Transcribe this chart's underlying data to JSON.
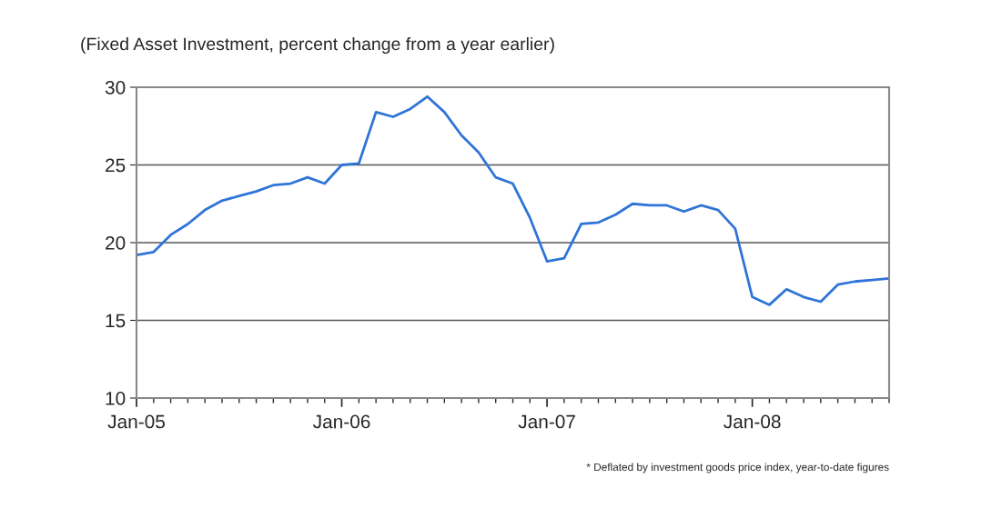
{
  "chart_data": {
    "type": "line",
    "title": "(Fixed Asset Investment, percent change from a year earlier)",
    "categories": [
      "Jan-05",
      null,
      null,
      null,
      null,
      null,
      null,
      null,
      null,
      null,
      null,
      null,
      "Jan-06",
      null,
      null,
      null,
      null,
      null,
      null,
      null,
      null,
      null,
      null,
      null,
      "Jan-07",
      null,
      null,
      null,
      null,
      null,
      null,
      null,
      null,
      null,
      null,
      null,
      "Jan-08",
      null,
      null,
      null,
      null,
      null,
      null,
      null,
      null
    ],
    "series": [
      {
        "color": "#2f74d8",
        "values": [
          19.2,
          19.4,
          20.5,
          21.2,
          22.1,
          22.7,
          23.0,
          23.3,
          23.7,
          23.8,
          24.2,
          23.8,
          25.0,
          25.1,
          28.4,
          28.1,
          28.6,
          29.4,
          28.4,
          26.9,
          25.8,
          24.2,
          23.8,
          21.6,
          18.8,
          19.0,
          21.2,
          21.3,
          21.8,
          22.5,
          22.4,
          22.4,
          22.0,
          22.4,
          22.1,
          20.9,
          16.5,
          16.0,
          17.0,
          16.5,
          16.2,
          17.3,
          17.5,
          17.6,
          17.7
        ]
      }
    ],
    "ylim": [
      10,
      30
    ],
    "yticks": [
      10,
      15,
      20,
      25,
      30
    ],
    "grid": "y",
    "marker": "none",
    "line_style": "solid",
    "annotations": [
      "* Deflated by investment goods price index, year-to-date figures"
    ]
  }
}
